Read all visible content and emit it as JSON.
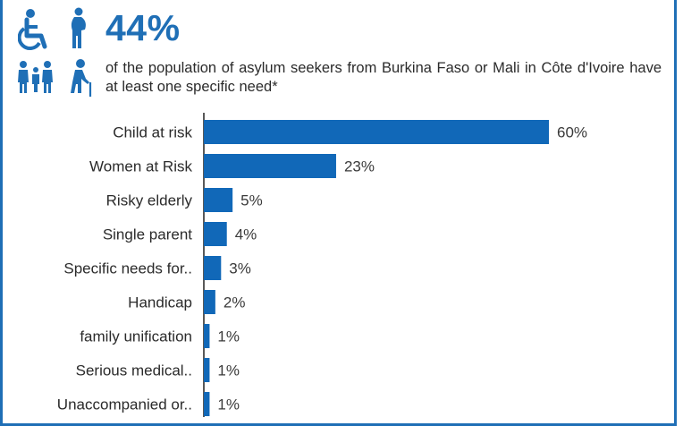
{
  "header": {
    "stat": "44%",
    "description": "of the population of asylum seekers from Burkina Faso or Mali in Côte d'Ivoire have at least one specific need*"
  },
  "icons": [
    "wheelchair-icon",
    "pregnant-woman-icon",
    "family-icon",
    "elderly-person-icon"
  ],
  "colors": {
    "accent": "#1f6fb6",
    "bar": "#1168b8"
  },
  "chart_data": {
    "type": "bar",
    "orientation": "horizontal",
    "title": "",
    "xlabel": "",
    "ylabel": "",
    "xlim": [
      0,
      100
    ],
    "grid": false,
    "categories": [
      "Child at risk",
      "Women at Risk",
      "Risky elderly",
      "Single parent",
      "Specific needs for..",
      "Handicap",
      "family unification",
      "Serious medical..",
      "Unaccompanied or.."
    ],
    "values": [
      60,
      23,
      5,
      4,
      3,
      2,
      1,
      1,
      1
    ],
    "value_labels": [
      "60%",
      "23%",
      "5%",
      "4%",
      "3%",
      "2%",
      "1%",
      "1%",
      "1%"
    ]
  }
}
